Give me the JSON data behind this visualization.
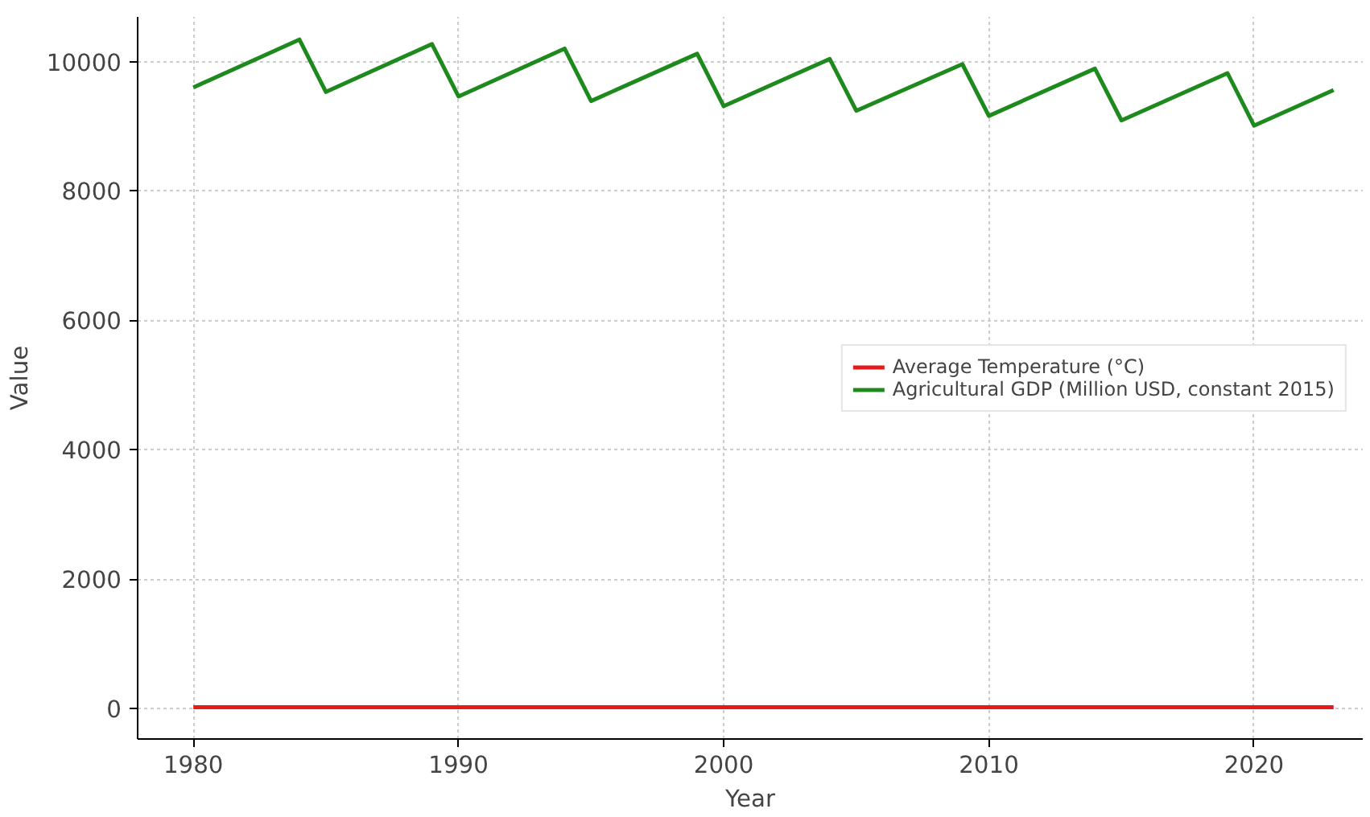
{
  "chart_data": {
    "type": "line",
    "xlabel": "Year",
    "ylabel": "Value",
    "xlim": [
      1977.9,
      2024.1
    ],
    "xticks": [
      1980,
      1990,
      2000,
      2010,
      2020
    ],
    "ylim": [
      -470,
      10690
    ],
    "yticks": [
      0,
      2000,
      4000,
      6000,
      8000,
      10000
    ],
    "grid": true,
    "legend": "right",
    "series": [
      {
        "name": "Average Temperature (°C)",
        "color": "#e41a1c",
        "x": [
          1980,
          2023
        ],
        "values": [
          20,
          20
        ]
      },
      {
        "name": "Agricultural GDP (Million USD, constant 2015)",
        "color": "#1e8a1e",
        "x": [
          1980,
          1984,
          1985,
          1989,
          1990,
          1994,
          1995,
          1999,
          2000,
          2004,
          2005,
          2009,
          2010,
          2014,
          2015,
          2019,
          2020,
          2023
        ],
        "values": [
          9600,
          10340,
          9530,
          10270,
          9460,
          10200,
          9390,
          10120,
          9310,
          10040,
          9240,
          9960,
          9160,
          9890,
          9090,
          9820,
          9010,
          9560
        ]
      }
    ]
  }
}
